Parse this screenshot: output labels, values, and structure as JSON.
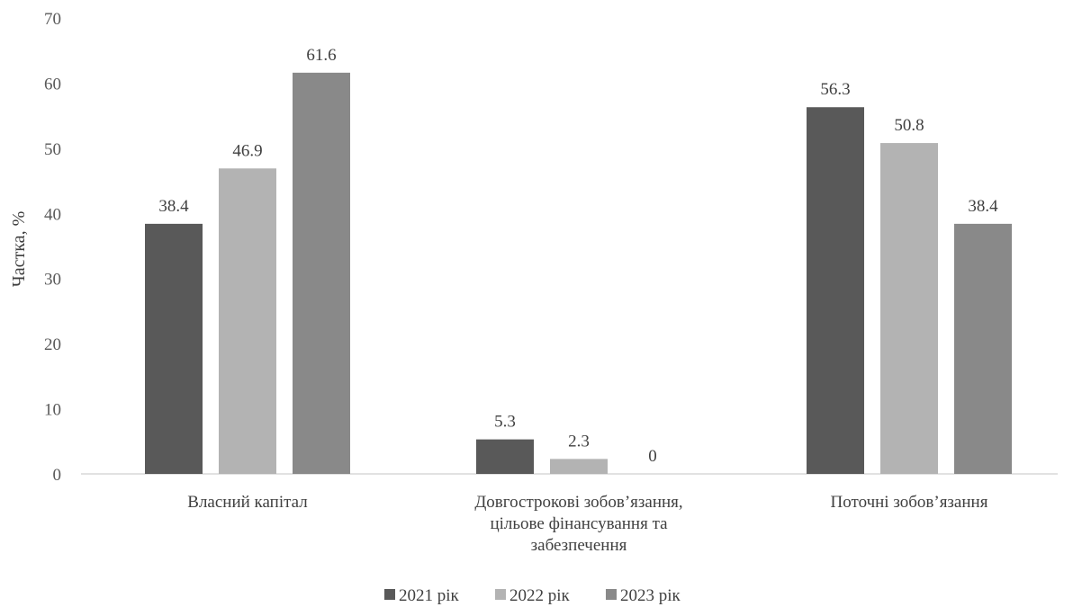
{
  "chart_data": {
    "type": "bar",
    "title": "",
    "xlabel": "",
    "ylabel": "Частка, %",
    "ylim": [
      0,
      70
    ],
    "yticks": [
      0,
      10,
      20,
      30,
      40,
      50,
      60,
      70
    ],
    "grid": false,
    "legend_position": "bottom",
    "categories": [
      [
        "Власний капітал"
      ],
      [
        "Довгострокові зобов’язання,",
        "цільове фінансування та",
        "забезпечення"
      ],
      [
        "Поточні зобов’язання"
      ]
    ],
    "series": [
      {
        "name": "2021 рік",
        "color": "#595959",
        "values": [
          38.4,
          5.3,
          56.3
        ]
      },
      {
        "name": "2022 рік",
        "color": "#b3b3b3",
        "values": [
          46.9,
          2.3,
          50.8
        ]
      },
      {
        "name": "2023 рік",
        "color": "#898989",
        "values": [
          61.6,
          0,
          38.4
        ]
      }
    ]
  }
}
